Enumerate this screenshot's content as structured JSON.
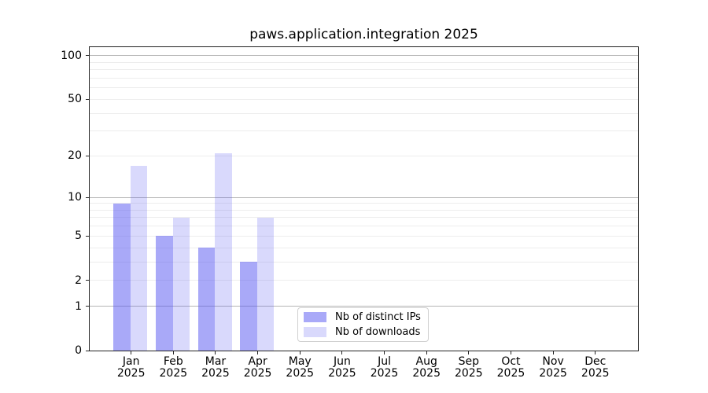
{
  "title": "paws.application.integration 2025",
  "chart_data": {
    "type": "bar",
    "title": "paws.application.integration 2025",
    "x_categories": [
      "Jan",
      "Feb",
      "Mar",
      "Apr",
      "May",
      "Jun",
      "Jul",
      "Aug",
      "Sep",
      "Oct",
      "Nov",
      "Dec"
    ],
    "x_sublabel": "2025",
    "series": [
      {
        "id": "distinct-ips",
        "name": "Nb of distinct IPs",
        "color": "rgba(83,83,242,0.50)",
        "values": [
          9,
          5,
          4,
          3,
          0,
          0,
          0,
          0,
          0,
          0,
          0,
          0
        ]
      },
      {
        "id": "downloads",
        "name": "Nb of downloads",
        "color": "rgba(83,83,242,0.22)",
        "values": [
          17,
          7,
          21,
          7,
          0,
          0,
          0,
          0,
          0,
          0,
          0,
          0
        ]
      }
    ],
    "y_axis": {
      "scale": "log10(1+y)",
      "tick_values": [
        0,
        1,
        2,
        5,
        10,
        20,
        50,
        100
      ],
      "tick_labels": [
        "0",
        "1",
        "2",
        "5",
        "10",
        "20",
        "50",
        "100"
      ],
      "major_grid_values": [
        1,
        10,
        100
      ],
      "minor_grid_values": [
        2,
        3,
        4,
        5,
        6,
        7,
        8,
        9,
        20,
        30,
        40,
        50,
        60,
        70,
        80,
        90
      ],
      "ylim": [
        0,
        114
      ],
      "grid": true
    },
    "legend": {
      "position": "lower center",
      "items": [
        "Nb of distinct IPs",
        "Nb of downloads"
      ]
    }
  },
  "colors": {
    "bar_distinct_ips": "rgba(83,83,242,0.50)",
    "bar_downloads": "rgba(83,83,242,0.22)",
    "grid_major": "#b5b5b5",
    "grid_minor": "#ededed",
    "spine": "#222222",
    "text": "#000000",
    "legend_border": "#d0d0d0"
  }
}
